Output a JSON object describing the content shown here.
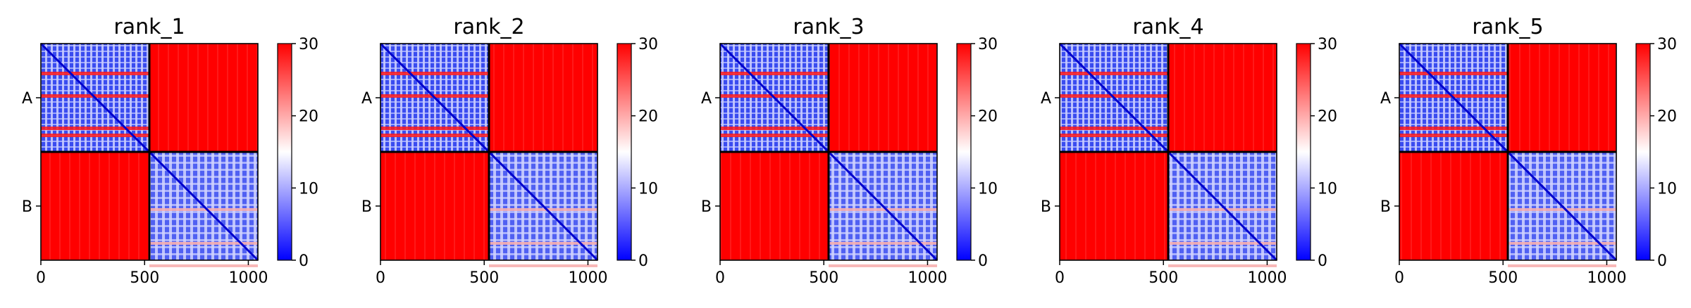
{
  "chart_data": [
    {
      "type": "heatmap",
      "title": "rank_1",
      "x_ticks": [
        0,
        500,
        1000
      ],
      "xlim": [
        0,
        1046
      ],
      "y_chain_labels": [
        "A",
        "B"
      ],
      "chain_boundary": 523,
      "colorbar": {
        "ticks": [
          0,
          10,
          20,
          30
        ],
        "range": [
          0,
          30
        ],
        "colors": [
          "#0000ff",
          "#ffffff",
          "#ff0000"
        ]
      }
    },
    {
      "type": "heatmap",
      "title": "rank_2",
      "x_ticks": [
        0,
        500,
        1000
      ],
      "xlim": [
        0,
        1046
      ],
      "y_chain_labels": [
        "A",
        "B"
      ],
      "chain_boundary": 523,
      "colorbar": {
        "ticks": [
          0,
          10,
          20,
          30
        ],
        "range": [
          0,
          30
        ],
        "colors": [
          "#0000ff",
          "#ffffff",
          "#ff0000"
        ]
      }
    },
    {
      "type": "heatmap",
      "title": "rank_3",
      "x_ticks": [
        0,
        500,
        1000
      ],
      "xlim": [
        0,
        1046
      ],
      "y_chain_labels": [
        "A",
        "B"
      ],
      "chain_boundary": 523,
      "colorbar": {
        "ticks": [
          0,
          10,
          20,
          30
        ],
        "range": [
          0,
          30
        ],
        "colors": [
          "#0000ff",
          "#ffffff",
          "#ff0000"
        ]
      }
    },
    {
      "type": "heatmap",
      "title": "rank_4",
      "x_ticks": [
        0,
        500,
        1000
      ],
      "xlim": [
        0,
        1046
      ],
      "y_chain_labels": [
        "A",
        "B"
      ],
      "chain_boundary": 523,
      "colorbar": {
        "ticks": [
          0,
          10,
          20,
          30
        ],
        "range": [
          0,
          30
        ],
        "colors": [
          "#0000ff",
          "#ffffff",
          "#ff0000"
        ]
      }
    },
    {
      "type": "heatmap",
      "title": "rank_5",
      "x_ticks": [
        0,
        500,
        1000
      ],
      "xlim": [
        0,
        1046
      ],
      "y_chain_labels": [
        "A",
        "B"
      ],
      "chain_boundary": 523,
      "colorbar": {
        "ticks": [
          0,
          10,
          20,
          30
        ],
        "range": [
          0,
          30
        ],
        "colors": [
          "#0000ff",
          "#ffffff",
          "#ff0000"
        ]
      }
    }
  ]
}
